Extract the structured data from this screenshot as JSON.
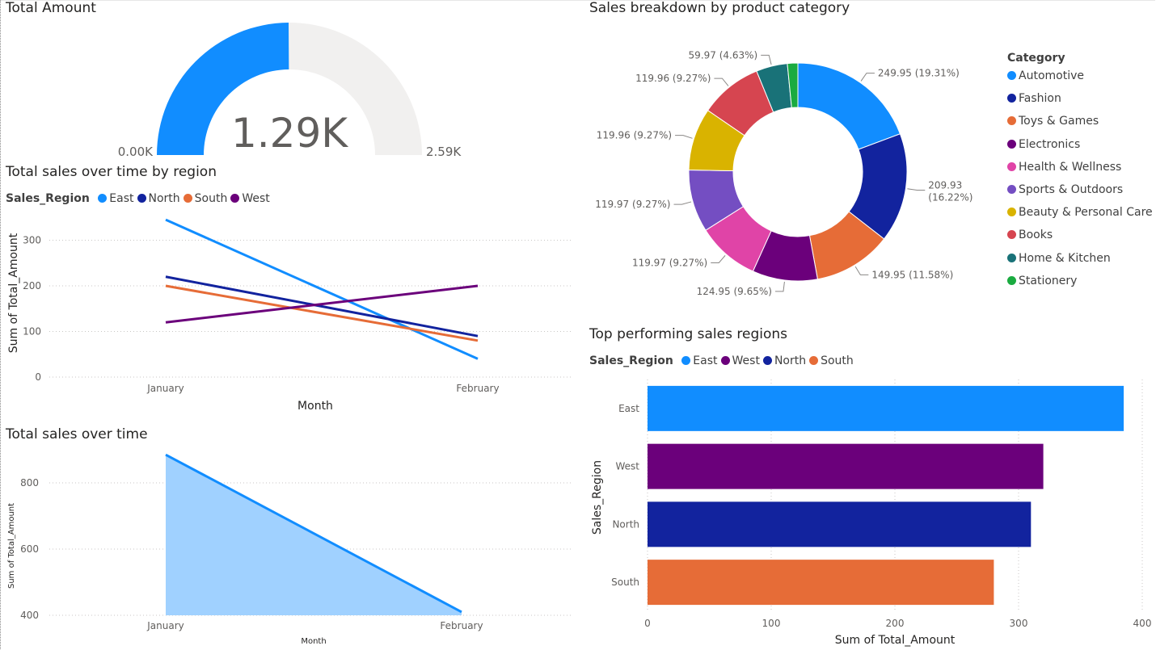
{
  "gauge": {
    "title": "Total Amount",
    "value_label": "1.29K",
    "min_label": "0.00K",
    "max_label": "2.59K",
    "value": 1.29,
    "min": 0,
    "max": 2.59,
    "fill_color": "#118DFF",
    "track_color": "#F1F0EF"
  },
  "donut": {
    "title": "Sales breakdown by product category",
    "legend_title": "Category",
    "slices": [
      {
        "category": "Automotive",
        "value": 249.95,
        "label": "249.95 (19.31%)",
        "color": "#118DFF"
      },
      {
        "category": "Fashion",
        "value": 209.93,
        "label": "209.93 (16.22%)",
        "color": "#12239E"
      },
      {
        "category": "Toys & Games",
        "value": 149.95,
        "label": "149.95 (11.58%)",
        "color": "#E66C37"
      },
      {
        "category": "Electronics",
        "value": 124.95,
        "label": "124.95 (9.65%)",
        "color": "#6B007B"
      },
      {
        "category": "Health & Wellness",
        "value": 119.97,
        "label": "119.97 (9.27%)",
        "color": "#E044A7"
      },
      {
        "category": "Sports & Outdoors",
        "value": 119.97,
        "label": "119.97 (9.27%)",
        "color": "#744EC2"
      },
      {
        "category": "Beauty & Personal Care",
        "value": 119.96,
        "label": "119.96 (9.27%)",
        "color": "#D9B300"
      },
      {
        "category": "Books",
        "value": 119.96,
        "label": "119.96 (9.27%)",
        "color": "#D64550"
      },
      {
        "category": "Home & Kitchen",
        "value": 59.97,
        "label": "59.97 (4.63%)",
        "color": "#197278"
      },
      {
        "category": "Stationery",
        "value": 20.0,
        "label": "",
        "color": "#1AAB40"
      }
    ]
  },
  "line_chart": {
    "title": "Total sales over time by region",
    "legend_title": "Sales_Region",
    "xlabel": "Month",
    "ylabel": "Sum of Total_Amount",
    "categories": [
      "January",
      "February"
    ],
    "y_ticks": [
      "0",
      "100",
      "200",
      "300"
    ],
    "series": [
      {
        "name": "East",
        "values": [
          345,
          40
        ],
        "color": "#118DFF"
      },
      {
        "name": "North",
        "values": [
          220,
          90
        ],
        "color": "#12239E"
      },
      {
        "name": "South",
        "values": [
          200,
          80
        ],
        "color": "#E66C37"
      },
      {
        "name": "West",
        "values": [
          120,
          200
        ],
        "color": "#6B007B"
      }
    ]
  },
  "area_chart": {
    "title": "Total sales over time",
    "xlabel": "Month",
    "ylabel": "Sum of Total_Amount",
    "categories": [
      "January",
      "February"
    ],
    "y_ticks": [
      "400",
      "600",
      "800"
    ],
    "values": [
      885,
      410
    ],
    "line_color": "#118DFF",
    "fill_color": "#A0D1FF"
  },
  "bar_chart": {
    "title": "Top performing sales regions",
    "legend_title": "Sales_Region",
    "xlabel": "Sum of Total_Amount",
    "ylabel": "Sales_Region",
    "x_ticks": [
      "0",
      "100",
      "200",
      "300",
      "400"
    ],
    "bars": [
      {
        "category": "East",
        "value": 385,
        "color": "#118DFF"
      },
      {
        "category": "West",
        "value": 320,
        "color": "#6B007B"
      },
      {
        "category": "North",
        "value": 310,
        "color": "#12239E"
      },
      {
        "category": "South",
        "value": 280,
        "color": "#E66C37"
      }
    ]
  },
  "chart_data": [
    {
      "type": "gauge",
      "title": "Total Amount",
      "value": 1.29,
      "min": 0,
      "max": 2.59
    },
    {
      "type": "pie",
      "title": "Sales breakdown by product category",
      "categories": [
        "Automotive",
        "Fashion",
        "Toys & Games",
        "Electronics",
        "Health & Wellness",
        "Sports & Outdoors",
        "Beauty & Personal Care",
        "Books",
        "Home & Kitchen",
        "Stationery"
      ],
      "values": [
        249.95,
        209.93,
        149.95,
        124.95,
        119.97,
        119.97,
        119.96,
        119.96,
        59.97,
        20.0
      ],
      "legend": "right"
    },
    {
      "type": "line",
      "title": "Total sales over time by region",
      "categories": [
        "January",
        "February"
      ],
      "series": [
        {
          "name": "East",
          "values": [
            345,
            40
          ]
        },
        {
          "name": "North",
          "values": [
            220,
            90
          ]
        },
        {
          "name": "South",
          "values": [
            200,
            80
          ]
        },
        {
          "name": "West",
          "values": [
            120,
            200
          ]
        }
      ],
      "xlabel": "Month",
      "ylabel": "Sum of Total_Amount",
      "ylim": [
        0,
        370
      ],
      "grid": true,
      "legend": "top-left"
    },
    {
      "type": "area",
      "title": "Total sales over time",
      "categories": [
        "January",
        "February"
      ],
      "values": [
        885,
        410
      ],
      "xlabel": "Month",
      "ylabel": "Sum of Total_Amount",
      "ylim": [
        400,
        900
      ],
      "grid": true
    },
    {
      "type": "bar",
      "orientation": "horizontal",
      "title": "Top performing sales regions",
      "categories": [
        "East",
        "West",
        "North",
        "South"
      ],
      "values": [
        385,
        320,
        310,
        280
      ],
      "xlabel": "Sum of Total_Amount",
      "ylabel": "Sales_Region",
      "xlim": [
        0,
        400
      ],
      "grid": true,
      "legend": "top-left"
    }
  ]
}
